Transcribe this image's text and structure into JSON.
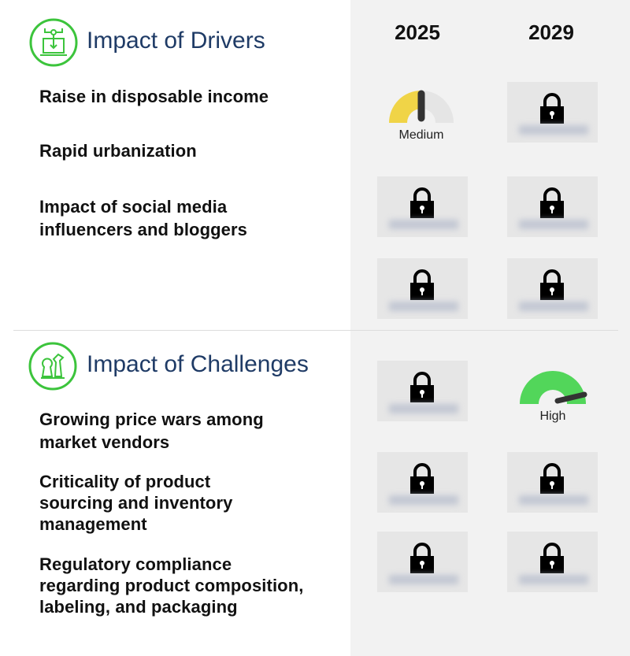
{
  "columns": [
    "2025",
    "2029"
  ],
  "drivers": {
    "title": "Impact of Drivers",
    "icon": "laptop-circuit-icon",
    "items": [
      "Raise in disposable income",
      "Rapid urbanization",
      "Impact of social media influencers and bloggers"
    ],
    "cells": [
      [
        {
          "type": "gauge",
          "label": "Medium",
          "level": 0.5,
          "color": "#f0d447"
        },
        {
          "type": "locked"
        }
      ],
      [
        {
          "type": "locked"
        },
        {
          "type": "locked"
        }
      ],
      [
        {
          "type": "locked"
        },
        {
          "type": "locked"
        }
      ]
    ]
  },
  "challenges": {
    "title": "Impact of Challenges",
    "icon": "chess-pieces-icon",
    "items": [
      "Growing price wars among market vendors",
      "Criticality of product sourcing and inventory management",
      "Regulatory compliance regarding product composition, labeling, and packaging"
    ],
    "cells": [
      [
        {
          "type": "locked"
        },
        {
          "type": "gauge",
          "label": "High",
          "level": 0.95,
          "color": "#52d65a"
        }
      ],
      [
        {
          "type": "locked"
        },
        {
          "type": "locked"
        }
      ],
      [
        {
          "type": "locked"
        },
        {
          "type": "locked"
        }
      ]
    ]
  },
  "colors": {
    "accent_green": "#3cc43c",
    "title_blue": "#1f3b66",
    "panel_bg": "#f2f2f2",
    "lock_bg": "#e6e6e6"
  }
}
